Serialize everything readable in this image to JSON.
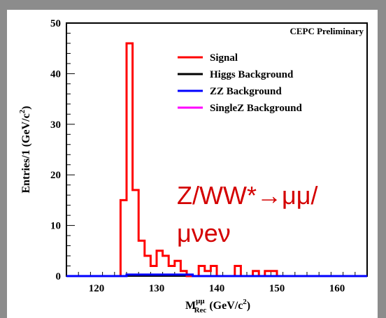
{
  "chart_data": {
    "type": "histogram",
    "annotation_top_right": "CEPC Preliminary",
    "overlay_label_line1": "Z/WW*→μμ/",
    "overlay_label_line2": "μνeν",
    "ylabel_main": "Entries/1 (GeV/c",
    "ylabel_sup": "2",
    "ylabel_close": ")",
    "xlabel_main": "M",
    "xlabel_sup": "μμ",
    "xlabel_sub": "Rec",
    "xlabel_unit": " (GeV/c",
    "xlabel_unit_sup": "2",
    "xlabel_close": ")",
    "xlim": [
      115,
      165
    ],
    "ylim": [
      0,
      50
    ],
    "x_ticks": [
      120,
      130,
      140,
      150,
      160
    ],
    "y_ticks": [
      0,
      10,
      20,
      30,
      40,
      50
    ],
    "bin_width": 1,
    "series": [
      {
        "name": "Signal",
        "color": "#ff0000",
        "bins": [
          [
            124,
            15
          ],
          [
            125,
            46
          ],
          [
            126,
            17
          ],
          [
            127,
            7
          ],
          [
            128,
            4
          ],
          [
            129,
            2
          ],
          [
            130,
            5
          ],
          [
            131,
            4
          ],
          [
            132,
            2
          ],
          [
            133,
            3
          ],
          [
            134,
            1
          ],
          [
            135,
            0
          ],
          [
            136,
            0
          ],
          [
            137,
            2
          ],
          [
            138,
            1
          ],
          [
            139,
            2
          ],
          [
            140,
            0
          ],
          [
            141,
            0
          ],
          [
            142,
            0
          ],
          [
            143,
            2
          ],
          [
            144,
            0
          ],
          [
            145,
            0
          ],
          [
            146,
            1
          ],
          [
            147,
            0
          ],
          [
            148,
            1
          ],
          [
            149,
            1
          ]
        ]
      },
      {
        "name": "Higgs Background",
        "color": "#000000",
        "bins": []
      },
      {
        "name": "ZZ Background",
        "color": "#0000ff",
        "bins": [
          [
            125,
            0.3
          ],
          [
            126,
            0.3
          ],
          [
            127,
            0.3
          ],
          [
            128,
            0.3
          ],
          [
            129,
            0.3
          ],
          [
            130,
            0.3
          ],
          [
            131,
            0.3
          ],
          [
            132,
            0.3
          ],
          [
            133,
            0.3
          ],
          [
            134,
            0.3
          ],
          [
            135,
            0.3
          ]
        ]
      },
      {
        "name": "SingleZ Background",
        "color": "#ff00ff",
        "bins": []
      }
    ],
    "legend_position": "upper-right"
  }
}
